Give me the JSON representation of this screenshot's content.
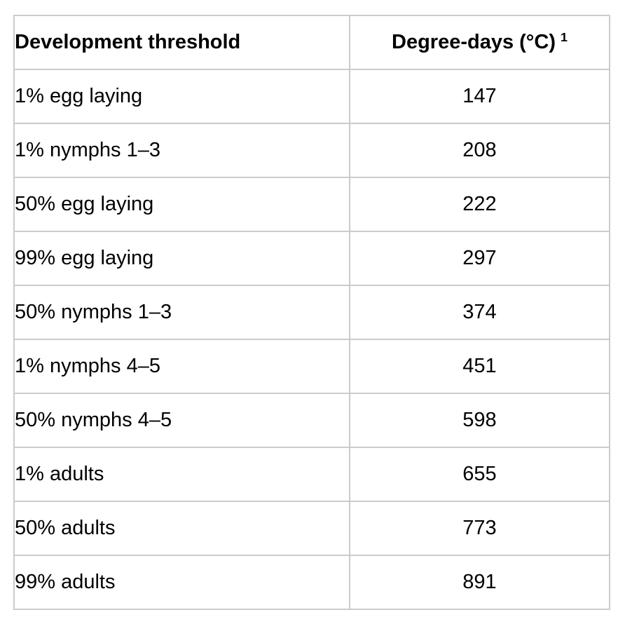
{
  "table": {
    "columns": [
      {
        "label": "Development threshold"
      },
      {
        "label": "Degree-days (°C)",
        "footnote_marker": "1"
      }
    ],
    "rows": [
      {
        "threshold": "1% egg laying",
        "degree_days": "147"
      },
      {
        "threshold": "1% nymphs 1–3",
        "degree_days": "208"
      },
      {
        "threshold": "50% egg laying",
        "degree_days": "222"
      },
      {
        "threshold": "99% egg laying",
        "degree_days": "297"
      },
      {
        "threshold": "50% nymphs 1–3",
        "degree_days": "374"
      },
      {
        "threshold": "1% nymphs 4–5",
        "degree_days": "451"
      },
      {
        "threshold": "50% nymphs 4–5",
        "degree_days": "598"
      },
      {
        "threshold": "1% adults",
        "degree_days": "655"
      },
      {
        "threshold": "50% adults",
        "degree_days": "773"
      },
      {
        "threshold": "99% adults",
        "degree_days": "891"
      }
    ]
  },
  "chart_data": {
    "type": "table",
    "title": "",
    "columns": [
      "Development threshold",
      "Degree-days (°C) 1"
    ],
    "rows": [
      [
        "1% egg laying",
        147
      ],
      [
        "1% nymphs 1–3",
        208
      ],
      [
        "50% egg laying",
        222
      ],
      [
        "99% egg laying",
        297
      ],
      [
        "50% nymphs 1–3",
        374
      ],
      [
        "1% nymphs 4–5",
        451
      ],
      [
        "50% nymphs 4–5",
        598
      ],
      [
        "1% adults",
        655
      ],
      [
        "50% adults",
        773
      ],
      [
        "99% adults",
        891
      ]
    ],
    "layout_hints": {
      "header_bold": true,
      "first_column_align": "left",
      "second_column_align": "center",
      "footnote_superscript_on_header": "1"
    }
  },
  "colors": {
    "border": "#cbcbcb",
    "text": "#000000",
    "background": "#ffffff"
  }
}
